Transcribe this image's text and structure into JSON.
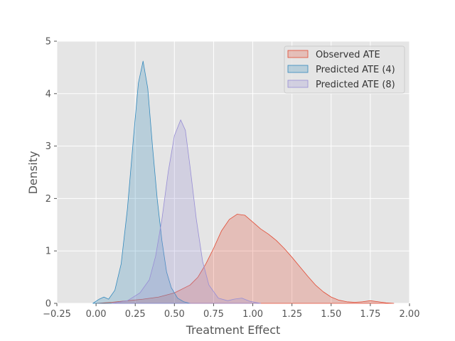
{
  "chart_data": {
    "type": "area",
    "title": "",
    "xlabel": "Treatment Effect",
    "ylabel": "Density",
    "xlim": [
      -0.25,
      2.0
    ],
    "ylim": [
      0,
      5
    ],
    "xticks": [
      "−0.25",
      "0.00",
      "0.25",
      "0.50",
      "0.75",
      "1.00",
      "1.25",
      "1.50",
      "1.75",
      "2.00"
    ],
    "xtick_values": [
      -0.25,
      0.0,
      0.25,
      0.5,
      0.75,
      1.0,
      1.25,
      1.5,
      1.75,
      2.0
    ],
    "yticks": [
      "0",
      "1",
      "2",
      "3",
      "4",
      "5"
    ],
    "ytick_values": [
      0,
      1,
      2,
      3,
      4,
      5
    ],
    "grid": true,
    "legend_position": "top-right",
    "series": [
      {
        "name": "Observed ATE",
        "fill": "#E24A33",
        "x": [
          0.0,
          0.1,
          0.2,
          0.3,
          0.4,
          0.5,
          0.6,
          0.65,
          0.7,
          0.75,
          0.8,
          0.85,
          0.9,
          0.95,
          1.0,
          1.05,
          1.1,
          1.15,
          1.2,
          1.25,
          1.3,
          1.35,
          1.4,
          1.45,
          1.5,
          1.55,
          1.6,
          1.65,
          1.7,
          1.75,
          1.8,
          1.85,
          1.9
        ],
        "y": [
          0.0,
          0.02,
          0.05,
          0.08,
          0.12,
          0.2,
          0.35,
          0.5,
          0.75,
          1.05,
          1.38,
          1.6,
          1.7,
          1.68,
          1.55,
          1.42,
          1.32,
          1.2,
          1.05,
          0.88,
          0.7,
          0.52,
          0.35,
          0.22,
          0.12,
          0.06,
          0.03,
          0.02,
          0.03,
          0.05,
          0.03,
          0.01,
          0.0
        ]
      },
      {
        "name": "Predicted ATE (4)",
        "fill": "#348ABD",
        "x": [
          -0.02,
          0.02,
          0.05,
          0.08,
          0.12,
          0.16,
          0.2,
          0.24,
          0.27,
          0.3,
          0.33,
          0.36,
          0.39,
          0.42,
          0.45,
          0.48,
          0.52,
          0.56,
          0.6
        ],
        "y": [
          0.0,
          0.08,
          0.12,
          0.08,
          0.25,
          0.75,
          1.8,
          3.2,
          4.2,
          4.62,
          4.1,
          3.0,
          2.0,
          1.2,
          0.6,
          0.3,
          0.1,
          0.03,
          0.0
        ]
      },
      {
        "name": "Predicted ATE (8)",
        "fill": "#988ED5",
        "x": [
          0.1,
          0.2,
          0.28,
          0.34,
          0.38,
          0.42,
          0.46,
          0.5,
          0.54,
          0.57,
          0.6,
          0.64,
          0.68,
          0.72,
          0.78,
          0.84,
          0.88,
          0.93,
          0.98,
          1.05
        ],
        "y": [
          0.0,
          0.05,
          0.2,
          0.45,
          0.9,
          1.6,
          2.5,
          3.2,
          3.5,
          3.3,
          2.6,
          1.6,
          0.8,
          0.35,
          0.1,
          0.05,
          0.08,
          0.1,
          0.04,
          0.0
        ]
      }
    ]
  }
}
